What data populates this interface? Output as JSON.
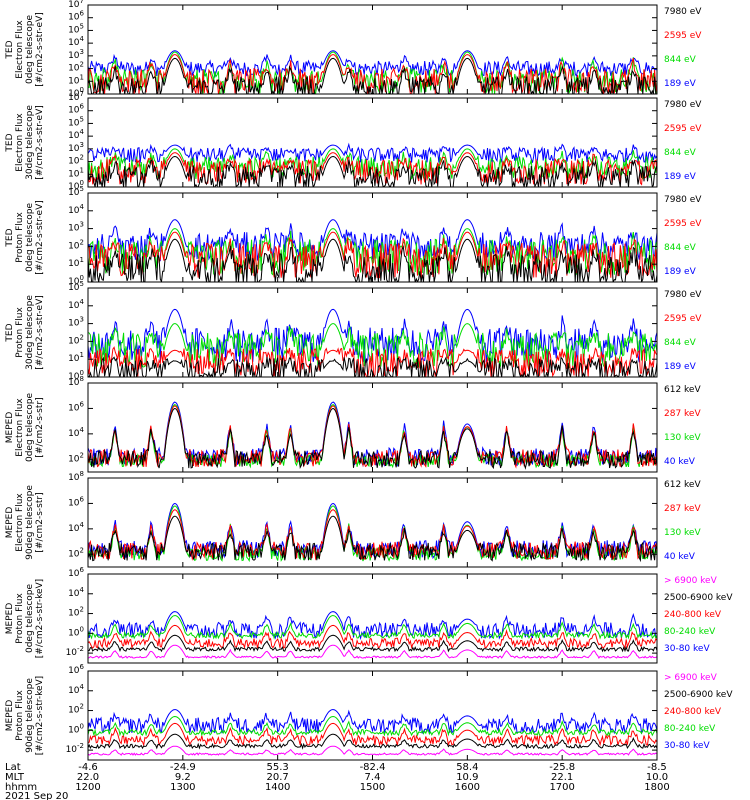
{
  "figure": {
    "date_label": "2021 Sep 20",
    "row_labels": [
      "Lat",
      "MLT",
      "hhmm"
    ],
    "x_ticks": [
      {
        "lat": "-4.6",
        "mlt": "22.0",
        "hhmm": "1200"
      },
      {
        "lat": "-24.9",
        "mlt": "9.2",
        "hhmm": "1300"
      },
      {
        "lat": "55.3",
        "mlt": "20.7",
        "hhmm": "1400"
      },
      {
        "lat": "-82.4",
        "mlt": "7.4",
        "hhmm": "1500"
      },
      {
        "lat": "58.4",
        "mlt": "10.9",
        "hhmm": "1600"
      },
      {
        "lat": "-25.8",
        "mlt": "22.1",
        "hhmm": "1700"
      },
      {
        "lat": "-8.5",
        "mlt": "10.0",
        "hhmm": "1800"
      }
    ],
    "colors": {
      "black": "#000000",
      "red": "#ff0000",
      "green": "#00dd00",
      "blue": "#0000ff",
      "magenta": "#ff00ff"
    }
  },
  "chart_data": [
    {
      "type": "line",
      "ylabel": [
        "TED",
        "Electron Flux",
        "0deg telescope",
        "[#/cm2-s-str-eV]"
      ],
      "ylim_exp": [
        0,
        7
      ],
      "ytick_exps": [
        0,
        1,
        2,
        3,
        4,
        5,
        6,
        7
      ],
      "xlim": [
        "1200",
        "1800"
      ],
      "series": [
        {
          "name": "7980 eV",
          "color": "#000000",
          "base": 0.5,
          "peak": 2.8,
          "spread": 0.9
        },
        {
          "name": "2595 eV",
          "color": "#ff0000",
          "base": 1.0,
          "peak": 3.1,
          "spread": 1.0
        },
        {
          "name": "844 eV",
          "color": "#00dd00",
          "base": 1.0,
          "peak": 3.3,
          "spread": 1.0
        },
        {
          "name": "189 eV",
          "color": "#0000ff",
          "base": 2.0,
          "peak": 3.4,
          "spread": 0.6
        }
      ]
    },
    {
      "type": "line",
      "ylabel": [
        "TED",
        "Electron Flux",
        "30deg telescope",
        "[#/cm2-s-str-eV]"
      ],
      "ylim_exp": [
        0,
        7
      ],
      "ytick_exps": [
        0,
        1,
        2,
        3,
        4,
        5,
        6,
        7
      ],
      "xlim": [
        "1200",
        "1800"
      ],
      "series": [
        {
          "name": "7980 eV",
          "color": "#000000",
          "base": 0.7,
          "peak": 2.4,
          "spread": 1.0
        },
        {
          "name": "2595 eV",
          "color": "#ff0000",
          "base": 1.2,
          "peak": 2.7,
          "spread": 1.0
        },
        {
          "name": "844 eV",
          "color": "#00dd00",
          "base": 1.5,
          "peak": 3.0,
          "spread": 0.9
        },
        {
          "name": "189 eV",
          "color": "#0000ff",
          "base": 2.5,
          "peak": 3.3,
          "spread": 0.6
        }
      ]
    },
    {
      "type": "line",
      "ylabel": [
        "TED",
        "Proton Flux",
        "0deg telescope",
        "[#/cm2-s-str-eV]"
      ],
      "ylim_exp": [
        0,
        5
      ],
      "ytick_exps": [
        0,
        1,
        2,
        3,
        4,
        5
      ],
      "xlim": [
        "1200",
        "1800"
      ],
      "series": [
        {
          "name": "7980 eV",
          "color": "#000000",
          "base": 0.6,
          "peak": 2.4,
          "spread": 1.0
        },
        {
          "name": "2595 eV",
          "color": "#ff0000",
          "base": 1.2,
          "peak": 2.8,
          "spread": 1.0
        },
        {
          "name": "844 eV",
          "color": "#00dd00",
          "base": 1.4,
          "peak": 3.0,
          "spread": 1.0
        },
        {
          "name": "189 eV",
          "color": "#0000ff",
          "base": 2.0,
          "peak": 3.5,
          "spread": 0.8
        }
      ]
    },
    {
      "type": "line",
      "ylabel": [
        "TED",
        "Proton Flux",
        "30deg telescope",
        "[#/cm2-s-str-eV]"
      ],
      "ylim_exp": [
        0,
        5
      ],
      "ytick_exps": [
        0,
        1,
        2,
        3,
        4,
        5
      ],
      "xlim": [
        "1200",
        "1800"
      ],
      "series": [
        {
          "name": "7980 eV",
          "color": "#000000",
          "base": 0.3,
          "peak": 0.9,
          "spread": 0.8
        },
        {
          "name": "2595 eV",
          "color": "#ff0000",
          "base": 0.8,
          "peak": 1.5,
          "spread": 0.8
        },
        {
          "name": "844 eV",
          "color": "#00dd00",
          "base": 1.5,
          "peak": 3.0,
          "spread": 1.0
        },
        {
          "name": "189 eV",
          "color": "#0000ff",
          "base": 1.8,
          "peak": 3.8,
          "spread": 1.0
        }
      ]
    },
    {
      "type": "line",
      "ylabel": [
        "MEPED",
        "Electron Flux",
        "0deg telescope",
        "[#/cm2-s-str]"
      ],
      "ylim_exp": [
        1,
        8
      ],
      "ytick_exps": [
        2,
        4,
        6,
        8
      ],
      "xlim": [
        "1200",
        "1800"
      ],
      "series": [
        {
          "name": "612 keV",
          "color": "#000000",
          "base": 2.0,
          "peak": 6.0,
          "spread": 0.7
        },
        {
          "name": "287 keV",
          "color": "#ff0000",
          "base": 2.1,
          "peak": 6.2,
          "spread": 0.7
        },
        {
          "name": "130 keV",
          "color": "#00dd00",
          "base": 1.9,
          "peak": 6.3,
          "spread": 0.5
        },
        {
          "name": "40 keV",
          "color": "#0000ff",
          "base": 2.2,
          "peak": 6.5,
          "spread": 0.7
        }
      ]
    },
    {
      "type": "line",
      "ylabel": [
        "MEPED",
        "Electron Flux",
        "90deg telescope",
        "[#/cm2-s-str]"
      ],
      "ylim_exp": [
        1,
        8
      ],
      "ytick_exps": [
        2,
        4,
        6,
        8
      ],
      "xlim": [
        "1200",
        "1800"
      ],
      "series": [
        {
          "name": "612 keV",
          "color": "#000000",
          "base": 2.2,
          "peak": 5.0,
          "spread": 0.7
        },
        {
          "name": "287 keV",
          "color": "#ff0000",
          "base": 2.3,
          "peak": 5.5,
          "spread": 0.7
        },
        {
          "name": "130 keV",
          "color": "#00dd00",
          "base": 2.0,
          "peak": 5.8,
          "spread": 0.5
        },
        {
          "name": "40 keV",
          "color": "#0000ff",
          "base": 2.4,
          "peak": 6.0,
          "spread": 0.7
        }
      ]
    },
    {
      "type": "line",
      "ylabel": [
        "MEPED",
        "Proton Flux",
        "0deg telescope",
        "[#/cm2-s-str-keV]"
      ],
      "ylim_exp": [
        -3,
        6
      ],
      "ytick_exps": [
        -2,
        0,
        2,
        4,
        6
      ],
      "xlim": [
        "1200",
        "1800"
      ],
      "series": [
        {
          "name": "> 6900 keV",
          "color": "#ff00ff",
          "base": -2.4,
          "peak": -1.2,
          "spread": 0.1
        },
        {
          "name": "2500-6900 keV",
          "color": "#000000",
          "base": -1.6,
          "peak": -0.2,
          "spread": 0.2
        },
        {
          "name": "240-800 keV",
          "color": "#ff0000",
          "base": -1.0,
          "peak": 0.8,
          "spread": 0.5
        },
        {
          "name": "80-240 keV",
          "color": "#00dd00",
          "base": -0.2,
          "peak": 1.8,
          "spread": 0.3
        },
        {
          "name": "30-80 keV",
          "color": "#0000ff",
          "base": 0.3,
          "peak": 2.2,
          "spread": 0.8
        }
      ]
    },
    {
      "type": "line",
      "ylabel": [
        "MEPED",
        "Proton Flux",
        "90deg telescope",
        "[#/cm2-s-str-keV]"
      ],
      "ylim_exp": [
        -3,
        6
      ],
      "ytick_exps": [
        -2,
        0,
        2,
        4,
        6
      ],
      "xlim": [
        "1200",
        "1800"
      ],
      "series": [
        {
          "name": "> 6900 keV",
          "color": "#ff00ff",
          "base": -2.4,
          "peak": -1.6,
          "spread": 0.1
        },
        {
          "name": "2500-6900 keV",
          "color": "#000000",
          "base": -1.6,
          "peak": -0.4,
          "spread": 0.2
        },
        {
          "name": "240-800 keV",
          "color": "#ff0000",
          "base": -1.0,
          "peak": 0.7,
          "spread": 0.5
        },
        {
          "name": "80-240 keV",
          "color": "#00dd00",
          "base": -0.2,
          "peak": 1.4,
          "spread": 0.3
        },
        {
          "name": "30-80 keV",
          "color": "#0000ff",
          "base": 0.5,
          "peak": 2.1,
          "spread": 0.8
        }
      ]
    }
  ]
}
